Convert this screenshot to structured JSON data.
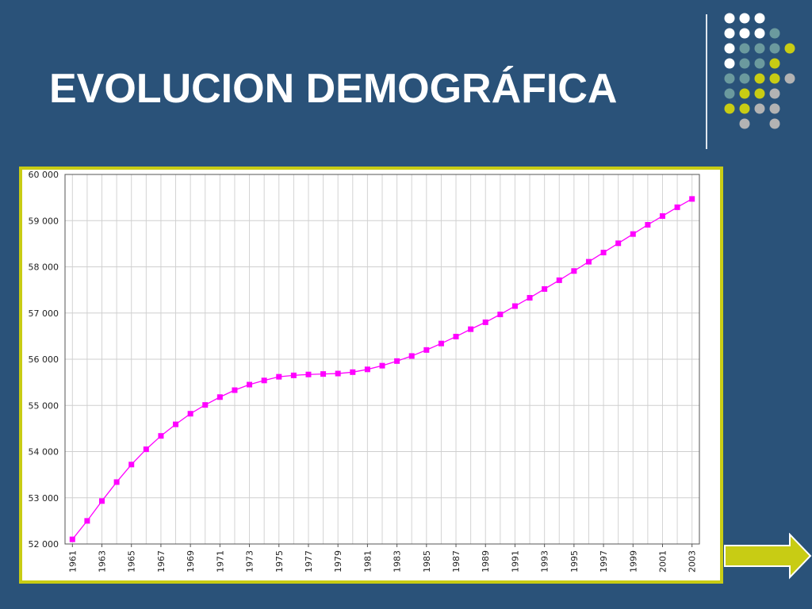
{
  "slide": {
    "title": "EVOLUCION DEMOGRÁFICA"
  },
  "colors": {
    "background": "#2a5279",
    "frame": "#c8cc14",
    "series": "#ff00ff",
    "arrow": "#c8cc14"
  },
  "decor": {
    "dot_colors": [
      "#ffffff",
      "#6b9a9e",
      "#c8cc14",
      "#b3b3b3"
    ]
  },
  "chart_data": {
    "type": "line",
    "title": "",
    "xlabel": "",
    "ylabel": "",
    "ylim": [
      52000,
      60000
    ],
    "xlim": [
      1960.5,
      2003.5
    ],
    "grid": true,
    "y_ticks": [
      "52 000",
      "53 000",
      "54 000",
      "55 000",
      "56 000",
      "57 000",
      "58 000",
      "59 000",
      "60 000"
    ],
    "x_ticks": [
      "1961",
      "1963",
      "1965",
      "1967",
      "1969",
      "1971",
      "1973",
      "1975",
      "1977",
      "1979",
      "1981",
      "1983",
      "1985",
      "1987",
      "1989",
      "1991",
      "1993",
      "1995",
      "1997",
      "1999",
      "2001",
      "2003"
    ],
    "x": [
      1961,
      1962,
      1963,
      1964,
      1965,
      1966,
      1967,
      1968,
      1969,
      1970,
      1971,
      1972,
      1973,
      1974,
      1975,
      1976,
      1977,
      1978,
      1979,
      1980,
      1981,
      1982,
      1983,
      1984,
      1985,
      1986,
      1987,
      1988,
      1989,
      1990,
      1991,
      1992,
      1993,
      1994,
      1995,
      1996,
      1997,
      1998,
      1999,
      2000,
      2001,
      2002,
      2003
    ],
    "values": [
      52100,
      52500,
      52930,
      53340,
      53720,
      54050,
      54340,
      54590,
      54820,
      55010,
      55180,
      55330,
      55450,
      55540,
      55620,
      55650,
      55670,
      55680,
      55690,
      55720,
      55780,
      55860,
      55960,
      56070,
      56200,
      56340,
      56490,
      56650,
      56800,
      56970,
      57150,
      57330,
      57520,
      57710,
      57910,
      58110,
      58310,
      58510,
      58710,
      58910,
      59100,
      59290,
      59470
    ],
    "series_color": "#ff00ff"
  }
}
